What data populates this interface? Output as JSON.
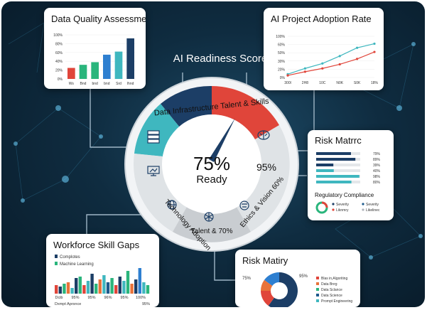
{
  "colors": {
    "blue": "#1e5a8c",
    "navy": "#1c3e66",
    "teal": "#3fb7bf",
    "green": "#2ab57c",
    "red": "#e0453a",
    "orange": "#e8733a",
    "lightgray": "#dfe3e6",
    "gray": "#c9cdd1"
  },
  "hub": {
    "title": "AI Readiness Score",
    "arc_label": "Data Infrastructure Talent & Skills",
    "percent": "75%",
    "status": "Ready",
    "score_right": "95%",
    "segments": [
      "Technology Adoption",
      "Talent & 70%",
      "Ethics & Vision 60%"
    ],
    "icons": [
      "server-icon",
      "brain-icon",
      "monitor-icon",
      "globe-icon",
      "network-icon",
      "scale-icon"
    ]
  },
  "data_quality": {
    "title": "Data Quality Assessment",
    "y_ticks": [
      "100%",
      "80%",
      "60%",
      "40%",
      "20%",
      "0%"
    ],
    "x_labels": [
      "Ws",
      "Bnd",
      "bnd",
      "bnd",
      "Srd",
      "lhnd"
    ],
    "chart_data": {
      "type": "bar",
      "ylim": [
        0,
        100
      ],
      "categories": [
        "Ws",
        "Bnd",
        "bnd",
        "bnd",
        "Srd",
        "lhnd"
      ],
      "values": [
        25,
        32,
        38,
        55,
        62,
        92
      ],
      "colors": [
        "#e0453a",
        "#2ab57c",
        "#2ab57c",
        "#2e7fd0",
        "#3fb7bf",
        "#1c3e66"
      ]
    }
  },
  "adoption": {
    "title": "AI Project Adoption Rate",
    "y_ticks": [
      "100%",
      "60%",
      "50%",
      "30%",
      "20%",
      "0%"
    ],
    "x_labels": [
      "300l",
      "2H8",
      "10C",
      "N0K",
      "S0K",
      "18%"
    ],
    "chart_data": {
      "type": "line",
      "x": [
        "300l",
        "2H8",
        "10C",
        "N0K",
        "S0K",
        "18%"
      ],
      "series": [
        {
          "values": [
            8,
            22,
            34,
            52,
            72,
            82
          ],
          "color": "#3fb7bf"
        },
        {
          "values": [
            5,
            14,
            22,
            32,
            45,
            62
          ],
          "color": "#e0453a"
        }
      ]
    }
  },
  "risk_matrix": {
    "title": "Risk Matrrc",
    "rows": [
      {
        "label": "79%",
        "value": 79,
        "color": "#1c3e66"
      },
      {
        "label": "89%",
        "value": 89,
        "color": "#1c3e66"
      },
      {
        "label": "39%",
        "value": 39,
        "color": "#1c3e66"
      },
      {
        "label": "40%",
        "value": 40,
        "color": "#3fb7bf"
      },
      {
        "label": "98%",
        "value": 98,
        "color": "#3fb7bf"
      },
      {
        "label": "80%",
        "value": 80,
        "color": "#3fb7bf"
      }
    ],
    "subtitle": "Regulatory Compliance",
    "legend": [
      {
        "label": "Severity",
        "color": "#1c3e66"
      },
      {
        "label": "Liknmry",
        "color": "#e0453a"
      },
      {
        "label": "Severity",
        "color": "#1e5a8c"
      },
      {
        "label": "Likelinec",
        "color": "#aeb4ba"
      }
    ]
  },
  "workforce": {
    "title": "Workforce Skill Gaps",
    "legend": [
      {
        "label": "Complotes",
        "color": "#1c3e66"
      },
      {
        "label": "Machine Learning",
        "color": "#2ab57c"
      }
    ],
    "x_labels": [
      "Dcib",
      "95%",
      "95%",
      "96%",
      "95%",
      "100%"
    ],
    "footer_left": "Dxmpt Aprsnce",
    "footer_right": "95%",
    "chart_data": {
      "type": "bar",
      "ylim": [
        0,
        100
      ],
      "values": [
        30,
        25,
        35,
        40,
        20,
        55,
        60,
        30,
        45,
        70,
        35,
        50,
        65,
        40,
        55,
        30,
        60,
        45,
        80,
        35,
        50,
        90,
        40,
        30
      ],
      "colors": [
        "#e0453a",
        "#1c3e66",
        "#2ab57c",
        "#e8733a",
        "#3fb7bf",
        "#1c3e66",
        "#2ab57c",
        "#e0453a",
        "#3fb7bf",
        "#1c3e66",
        "#2ab57c",
        "#e8733a",
        "#3fb7bf",
        "#1e5a8c",
        "#2ab57c",
        "#e0453a",
        "#1c3e66",
        "#3fb7bf",
        "#2ab57c",
        "#e8733a",
        "#1c3e66",
        "#2e7fd0",
        "#3fb7bf",
        "#2ab57c"
      ]
    }
  },
  "risk_maturity": {
    "title": "Risk Matiry",
    "left_pct": "75%",
    "right_pct": "95%",
    "legend": [
      {
        "label": "Blas in,Algoriting",
        "color": "#e0453a"
      },
      {
        "label": "Data Bnrg",
        "color": "#e8733a"
      },
      {
        "label": "Data Sclance",
        "color": "#2ab57c"
      },
      {
        "label": "Data Science",
        "color": "#1e5a8c"
      },
      {
        "label": "Prompt Engineering",
        "color": "#3fb7bf"
      }
    ],
    "chart_data": {
      "type": "pie",
      "values": [
        60,
        15,
        10,
        15
      ],
      "colors": [
        "#1c3e66",
        "#e0453a",
        "#e8733a",
        "#2e7fd0"
      ]
    }
  }
}
